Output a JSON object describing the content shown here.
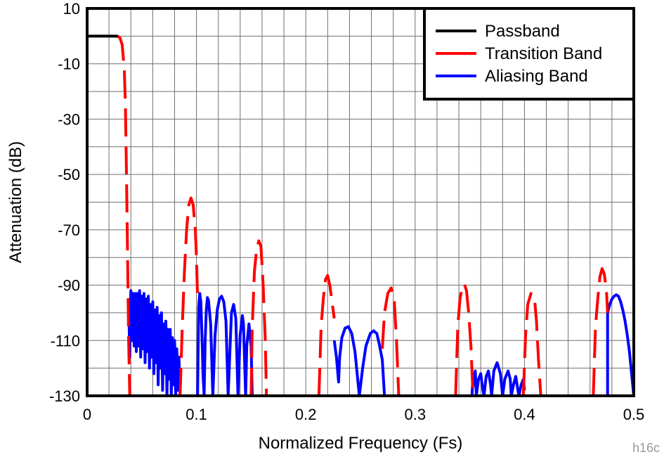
{
  "chart_data": {
    "type": "line",
    "title": "",
    "xlabel": "Normalized Frequency (Fs)",
    "ylabel": "Attenuation (dB)",
    "xlim": [
      0,
      0.5
    ],
    "ylim": [
      -130,
      10
    ],
    "x_ticks": [
      0,
      0.1,
      0.2,
      0.3,
      0.4,
      0.5
    ],
    "x_tick_labels": [
      "0",
      "0.1",
      "0.2",
      "0.3",
      "0.4",
      "0.5"
    ],
    "y_ticks": [
      10,
      -10,
      -30,
      -50,
      -70,
      -90,
      -110,
      -130
    ],
    "y_tick_labels": [
      "10",
      "-10",
      "-30",
      "-50",
      "-70",
      "-90",
      "-110",
      "-130"
    ],
    "grid": true,
    "legend_position": "top-right",
    "series": [
      {
        "name": "Passband",
        "color": "#000000",
        "style": "solid",
        "segments": [
          [
            [
              0,
              0
            ],
            [
              0.026,
              0
            ],
            [
              0.028,
              -0.05
            ]
          ]
        ]
      },
      {
        "name": "Transition Band",
        "color": "#ff0000",
        "style": "dashed",
        "segments": [
          [
            [
              0.026,
              0
            ],
            [
              0.028,
              -0.05
            ],
            [
              0.03,
              -0.6
            ],
            [
              0.032,
              -3
            ],
            [
              0.034,
              -12
            ],
            [
              0.035,
              -25
            ],
            [
              0.036,
              -50
            ],
            [
              0.037,
              -80
            ],
            [
              0.038,
              -110
            ],
            [
              0.039,
              -130
            ]
          ],
          [
            [
              0.085,
              -130
            ],
            [
              0.087,
              -105
            ],
            [
              0.089,
              -85
            ],
            [
              0.091,
              -70
            ],
            [
              0.093,
              -61
            ],
            [
              0.095,
              -58.5
            ],
            [
              0.097,
              -61
            ],
            [
              0.099,
              -70
            ],
            [
              0.1,
              -80
            ],
            [
              0.101,
              -95
            ]
          ],
          [
            [
              0.15,
              -130
            ],
            [
              0.151,
              -105
            ],
            [
              0.153,
              -85
            ],
            [
              0.155,
              -77
            ],
            [
              0.157,
              -74
            ],
            [
              0.159,
              -76
            ],
            [
              0.161,
              -90
            ],
            [
              0.163,
              -110
            ],
            [
              0.164,
              -130
            ]
          ],
          [
            [
              0.212,
              -130
            ],
            [
              0.214,
              -105
            ],
            [
              0.216,
              -95
            ],
            [
              0.218,
              -88
            ],
            [
              0.22,
              -86.5
            ],
            [
              0.222,
              -90
            ],
            [
              0.224,
              -96
            ],
            [
              0.226,
              -102
            ]
          ],
          [
            [
              0.27,
              -113
            ],
            [
              0.272,
              -100
            ],
            [
              0.275,
              -93
            ],
            [
              0.278,
              -91
            ],
            [
              0.281,
              -96
            ],
            [
              0.283,
              -110
            ],
            [
              0.285,
              -130
            ]
          ],
          [
            [
              0.337,
              -130
            ],
            [
              0.339,
              -105
            ],
            [
              0.341,
              -95
            ],
            [
              0.343,
              -91
            ],
            [
              0.345,
              -89.5
            ],
            [
              0.347,
              -92
            ],
            [
              0.349,
              -100
            ],
            [
              0.351,
              -112
            ],
            [
              0.353,
              -130
            ]
          ],
          [
            [
              0.399,
              -130
            ],
            [
              0.401,
              -108
            ],
            [
              0.403,
              -97
            ],
            [
              0.406,
              -93
            ],
            [
              0.409,
              -94
            ],
            [
              0.411,
              -103
            ],
            [
              0.413,
              -118
            ],
            [
              0.415,
              -130
            ]
          ],
          [
            [
              0.463,
              -130
            ],
            [
              0.465,
              -105
            ],
            [
              0.467,
              -95
            ],
            [
              0.469,
              -87
            ],
            [
              0.471,
              -84
            ],
            [
              0.473,
              -86
            ],
            [
              0.475,
              -92
            ],
            [
              0.476,
              -100
            ]
          ]
        ]
      },
      {
        "name": "Aliasing Band",
        "color": "#0000ff",
        "style": "solid",
        "segments": [
          [
            [
              0.038,
              -95
            ],
            [
              0.039,
              -116
            ],
            [
              0.04,
              -92
            ],
            [
              0.041,
              -110
            ],
            [
              0.042,
              -93
            ],
            [
              0.043,
              -112
            ],
            [
              0.044,
              -93
            ],
            [
              0.045,
              -114
            ],
            [
              0.046,
              -93
            ],
            [
              0.047,
              -112
            ],
            [
              0.048,
              -92
            ],
            [
              0.049,
              -116
            ],
            [
              0.05,
              -94
            ],
            [
              0.051,
              -113
            ],
            [
              0.052,
              -93
            ],
            [
              0.053,
              -118
            ],
            [
              0.054,
              -95
            ],
            [
              0.055,
              -114
            ],
            [
              0.056,
              -94
            ],
            [
              0.057,
              -120
            ],
            [
              0.058,
              -97
            ],
            [
              0.059,
              -116
            ],
            [
              0.06,
              -96
            ],
            [
              0.061,
              -122
            ],
            [
              0.062,
              -99
            ],
            [
              0.063,
              -118
            ],
            [
              0.064,
              -98
            ],
            [
              0.065,
              -126
            ],
            [
              0.066,
              -101
            ],
            [
              0.067,
              -120
            ],
            [
              0.068,
              -100
            ],
            [
              0.069,
              -128
            ],
            [
              0.07,
              -104
            ],
            [
              0.071,
              -122
            ],
            [
              0.072,
              -103
            ],
            [
              0.073,
              -130
            ],
            [
              0.074,
              -106
            ],
            [
              0.075,
              -124
            ],
            [
              0.076,
              -106
            ],
            [
              0.077,
              -130
            ],
            [
              0.078,
              -109
            ],
            [
              0.079,
              -126
            ],
            [
              0.08,
              -110
            ],
            [
              0.081,
              -130
            ],
            [
              0.082,
              -113
            ],
            [
              0.083,
              -128
            ],
            [
              0.084,
              -116
            ],
            [
              0.085,
              -130
            ]
          ],
          [
            [
              0.101,
              -130
            ],
            [
              0.102,
              -98
            ],
            [
              0.103,
              -93
            ],
            [
              0.104,
              -96
            ],
            [
              0.105,
              -108
            ],
            [
              0.106,
              -122
            ],
            [
              0.107,
              -130
            ],
            [
              0.108,
              -110
            ],
            [
              0.109,
              -99
            ],
            [
              0.11,
              -94.5
            ],
            [
              0.111,
              -95.5
            ],
            [
              0.113,
              -104
            ],
            [
              0.115,
              -130
            ],
            [
              0.117,
              -108
            ],
            [
              0.119,
              -99
            ],
            [
              0.121,
              -95
            ],
            [
              0.123,
              -94
            ],
            [
              0.125,
              -96
            ],
            [
              0.127,
              -103
            ],
            [
              0.129,
              -130
            ],
            [
              0.131,
              -110
            ],
            [
              0.132,
              -100
            ],
            [
              0.134,
              -97
            ],
            [
              0.136,
              -102
            ],
            [
              0.138,
              -130
            ],
            [
              0.14,
              -108
            ],
            [
              0.142,
              -101
            ],
            [
              0.143,
              -104
            ],
            [
              0.145,
              -130
            ],
            [
              0.146,
              -112
            ],
            [
              0.148,
              -104
            ],
            [
              0.15,
              -112
            ],
            [
              0.151,
              -130
            ]
          ],
          [
            [
              0.226,
              -110
            ],
            [
              0.228,
              -116
            ],
            [
              0.23,
              -125
            ],
            [
              0.231,
              -116
            ],
            [
              0.233,
              -109
            ],
            [
              0.236,
              -105.5
            ],
            [
              0.239,
              -105
            ],
            [
              0.242,
              -107.5
            ],
            [
              0.245,
              -114
            ],
            [
              0.247,
              -122
            ],
            [
              0.249,
              -130
            ],
            [
              0.252,
              -120
            ],
            [
              0.255,
              -112
            ],
            [
              0.259,
              -107.5
            ],
            [
              0.262,
              -106.5
            ],
            [
              0.265,
              -107.5
            ],
            [
              0.267,
              -111
            ],
            [
              0.27,
              -117
            ],
            [
              0.272,
              -130
            ]
          ],
          [
            [
              0.352,
              -130
            ],
            [
              0.353,
              -122
            ],
            [
              0.354,
              -126
            ],
            [
              0.355,
              -121
            ],
            [
              0.356,
              -130
            ],
            [
              0.358,
              -124
            ],
            [
              0.36,
              -122
            ],
            [
              0.362,
              -128
            ],
            [
              0.363,
              -130
            ],
            [
              0.365,
              -123
            ],
            [
              0.367,
              -121
            ],
            [
              0.369,
              -126
            ],
            [
              0.37,
              -130
            ],
            [
              0.372,
              -121
            ],
            [
              0.375,
              -118
            ],
            [
              0.378,
              -122
            ],
            [
              0.38,
              -130
            ],
            [
              0.382,
              -124
            ],
            [
              0.385,
              -121
            ],
            [
              0.387,
              -124
            ],
            [
              0.388,
              -130
            ],
            [
              0.39,
              -126
            ],
            [
              0.392,
              -123
            ],
            [
              0.394,
              -128
            ],
            [
              0.395,
              -130
            ],
            [
              0.397,
              -126
            ],
            [
              0.399,
              -124
            ],
            [
              0.4,
              -128
            ]
          ],
          [
            [
              0.476,
              -130
            ],
            [
              0.476,
              -100
            ],
            [
              0.478,
              -97
            ],
            [
              0.48,
              -95
            ],
            [
              0.482,
              -94
            ],
            [
              0.484,
              -93.5
            ],
            [
              0.486,
              -94
            ],
            [
              0.488,
              -96
            ],
            [
              0.49,
              -99
            ],
            [
              0.492,
              -103
            ],
            [
              0.494,
              -108
            ],
            [
              0.496,
              -114
            ],
            [
              0.498,
              -122
            ],
            [
              0.5,
              -130
            ]
          ]
        ]
      }
    ]
  },
  "watermark": "h16c"
}
